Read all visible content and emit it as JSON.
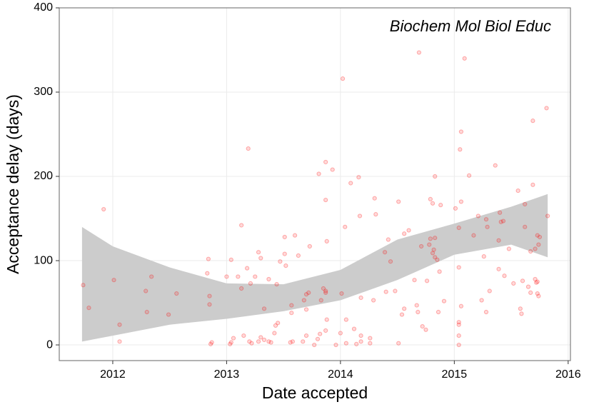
{
  "chart_data": {
    "type": "scatter",
    "annotation": "Biochem Mol Biol Educ",
    "x_label": "Date accepted",
    "y_label": "Acceptance delay (days)",
    "xlim": [
      2011.53,
      2016.02
    ],
    "xticks": [
      2012,
      2013,
      2014,
      2015,
      2016
    ],
    "ylim": [
      -18.6,
      400
    ],
    "yticks": [
      0,
      100,
      200,
      300,
      400
    ],
    "grid": true,
    "color": "#ff0000",
    "band_color": "#cccccc",
    "x": [
      2011.74,
      2011.79,
      2011.92,
      2012.01,
      2012.06,
      2012.06,
      2012.29,
      2012.3,
      2012.34,
      2012.49,
      2012.56,
      2012.84,
      2012.83,
      2012.85,
      2012.85,
      2012.86,
      2012.87,
      2013.0,
      2013.03,
      2013.04,
      2013.04,
      2013.06,
      2013.1,
      2013.13,
      2013.13,
      2013.15,
      2013.18,
      2013.19,
      2013.2,
      2013.22,
      2013.21,
      2013.25,
      2013.28,
      2013.28,
      2013.3,
      2013.3,
      2013.33,
      2013.33,
      2013.37,
      2013.37,
      2013.39,
      2013.42,
      2013.43,
      2013.45,
      2013.44,
      2013.47,
      2013.51,
      2013.52,
      2013.51,
      2013.56,
      2013.57,
      2013.57,
      2013.58,
      2013.6,
      2013.63,
      2013.67,
      2013.68,
      2013.7,
      2013.7,
      2013.7,
      2013.72,
      2013.73,
      2013.77,
      2013.8,
      2013.81,
      2013.82,
      2013.83,
      2013.85,
      2013.87,
      2013.87,
      2013.87,
      2013.87,
      2013.87,
      2013.88,
      2013.88,
      2013.93,
      2013.96,
      2014.0,
      2014.01,
      2014.02,
      2014.04,
      2014.05,
      2014.05,
      2014.09,
      2014.12,
      2014.14,
      2014.16,
      2014.17,
      2014.18,
      2014.18,
      2014.18,
      2014.26,
      2014.26,
      2014.29,
      2014.3,
      2014.31,
      2014.39,
      2014.4,
      2014.42,
      2014.44,
      2014.48,
      2014.51,
      2014.51,
      2014.54,
      2014.56,
      2014.56,
      2014.6,
      2014.65,
      2014.67,
      2014.68,
      2014.69,
      2014.71,
      2014.72,
      2014.75,
      2014.76,
      2014.78,
      2014.79,
      2014.79,
      2014.81,
      2014.81,
      2014.82,
      2014.83,
      2014.83,
      2014.85,
      2014.83,
      2014.86,
      2014.87,
      2014.88,
      2014.91,
      2015.01,
      2015.04,
      2015.04,
      2015.04,
      2015.04,
      2015.04,
      2015.04,
      2015.05,
      2015.06,
      2015.06,
      2015.06,
      2015.09,
      2015.13,
      2015.17,
      2015.21,
      2015.24,
      2015.26,
      2015.28,
      2015.28,
      2015.29,
      2015.31,
      2015.36,
      2015.39,
      2015.39,
      2015.4,
      2015.41,
      2015.43,
      2015.44,
      2015.48,
      2015.52,
      2015.56,
      2015.58,
      2015.59,
      2015.6,
      2015.62,
      2015.62,
      2015.65,
      2015.67,
      2015.67,
      2015.69,
      2015.69,
      2015.71,
      2015.71,
      2015.72,
      2015.73,
      2015.73,
      2015.73,
      2015.74,
      2015.74,
      2015.75,
      2015.81,
      2015.82
    ],
    "values": [
      71,
      44,
      161,
      77,
      24,
      4,
      64,
      39,
      81,
      36,
      61,
      102,
      85,
      58,
      48,
      1,
      3,
      81,
      1,
      3,
      101,
      8,
      81,
      67,
      142,
      11,
      91,
      233,
      4,
      2,
      73,
      81,
      110,
      4,
      9,
      103,
      43,
      6,
      78,
      4,
      3,
      14,
      23,
      26,
      72,
      99,
      128,
      94,
      108,
      3,
      47,
      38,
      4,
      130,
      106,
      4,
      53,
      60,
      11,
      42,
      62,
      117,
      0,
      7,
      203,
      13,
      53,
      67,
      217,
      172,
      62,
      64,
      17,
      30,
      123,
      208,
      0,
      14,
      61,
      316,
      140,
      30,
      2,
      192,
      19,
      1,
      199,
      153,
      11,
      4,
      56,
      8,
      2,
      53,
      174,
      155,
      110,
      63,
      125,
      99,
      64,
      170,
      2,
      36,
      43,
      132,
      136,
      77,
      47,
      39,
      347,
      117,
      22,
      18,
      76,
      119,
      126,
      173,
      168,
      109,
      113,
      200,
      104,
      101,
      127,
      39,
      87,
      166,
      52,
      162,
      27,
      24,
      92,
      11,
      0,
      139,
      232,
      253,
      170,
      46,
      340,
      201,
      130,
      153,
      53,
      105,
      39,
      149,
      140,
      64,
      213,
      124,
      90,
      157,
      146,
      147,
      82,
      114,
      73,
      183,
      43,
      37,
      76,
      167,
      140,
      69,
      62,
      111,
      266,
      190,
      78,
      114,
      74,
      75,
      130,
      61,
      58,
      119,
      128,
      281,
      153
    ],
    "band": {
      "x": [
        2011.73,
        2012.0,
        2012.5,
        2013.0,
        2013.5,
        2014.0,
        2014.5,
        2015.0,
        2015.5,
        2015.82
      ],
      "lower": [
        4,
        11,
        24,
        31,
        40,
        53,
        77,
        107,
        119,
        104
      ],
      "upper": [
        140,
        117,
        92,
        73,
        72,
        89,
        125,
        144,
        164,
        179
      ]
    }
  }
}
